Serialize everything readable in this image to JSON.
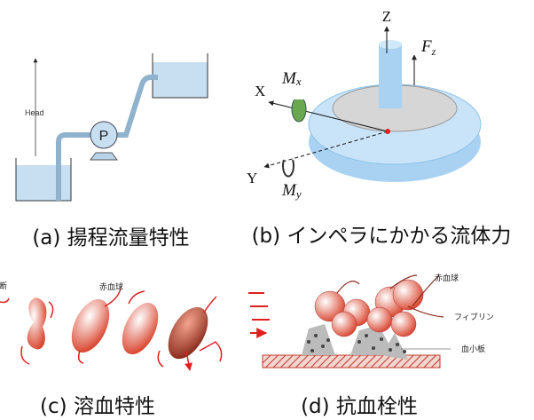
{
  "panels": [
    {
      "caption": "(a) 揚程流量特性",
      "labels": {
        "head": "Head",
        "pump": "P"
      }
    },
    {
      "caption": "(b) インペラにかかる流体力",
      "labels": {
        "z": "Z",
        "fz": {
          "main": "F",
          "sub": "z"
        },
        "x": "X",
        "mx": {
          "main": "M",
          "sub": "x"
        },
        "y": "Y",
        "my": {
          "main": "M",
          "sub": "y"
        }
      }
    },
    {
      "caption": "(c) 溶血特性",
      "labels": {
        "rupture": "断",
        "rbc": "赤血球"
      }
    },
    {
      "caption": "(d) 抗血栓性",
      "labels": {
        "rbc": "赤血球",
        "fibrin": "フィブリン",
        "platelet": "血小板"
      }
    }
  ]
}
